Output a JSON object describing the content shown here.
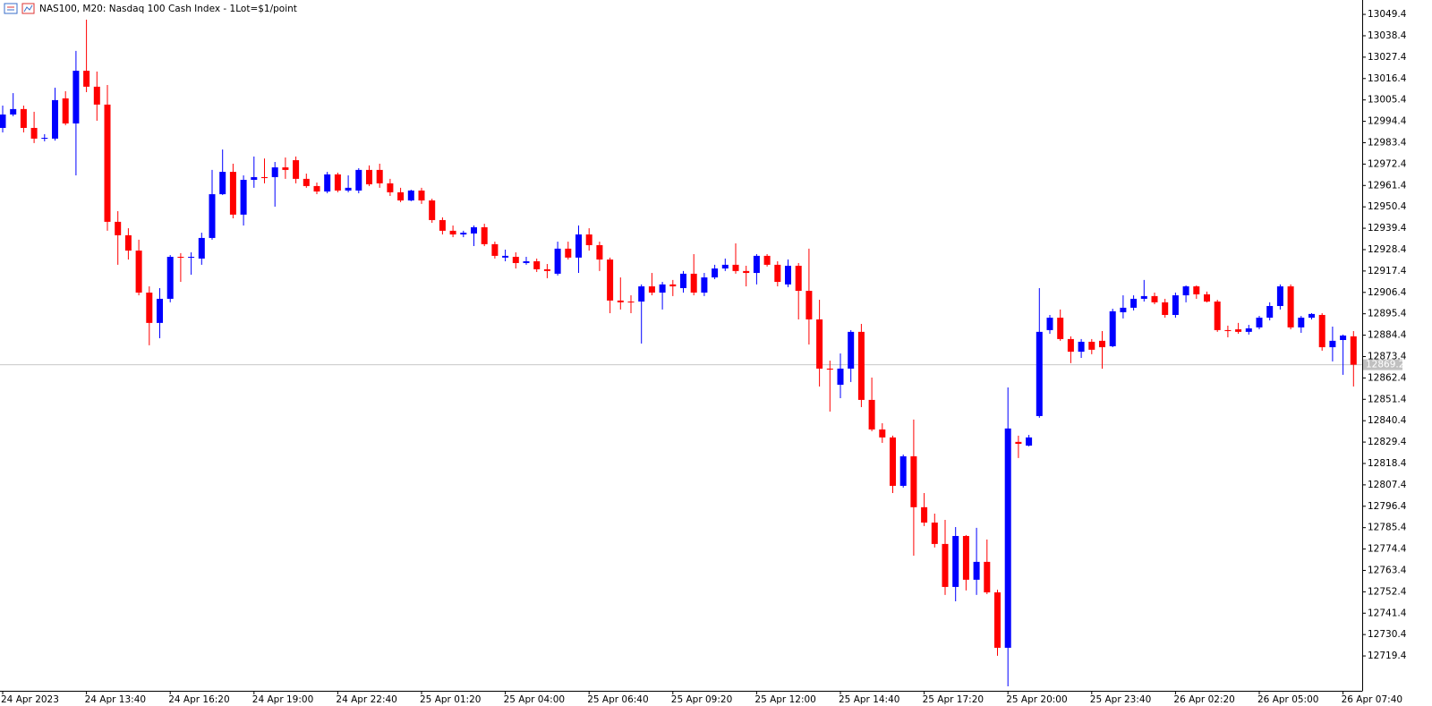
{
  "chart_data": {
    "type": "candlestick",
    "title": "NAS100, M20:  Nasdaq 100 Cash Index - 1Lot=$1/point",
    "up_color": "#0000ff",
    "down_color": "#ff0000",
    "current_price": 12869.2,
    "categories": [
      "24 Apr 2023",
      null,
      null,
      null,
      null,
      null,
      null,
      null,
      "24 Apr 13:40",
      null,
      null,
      null,
      null,
      null,
      null,
      null,
      "24 Apr 16:20",
      null,
      null,
      null,
      null,
      null,
      null,
      null,
      "24 Apr 19:00",
      null,
      null,
      null,
      null,
      null,
      null,
      null,
      "24 Apr 22:40",
      null,
      null,
      null,
      null,
      null,
      null,
      null,
      "25 Apr 01:20",
      null,
      null,
      null,
      null,
      null,
      null,
      null,
      "25 Apr 04:00",
      null,
      null,
      null,
      null,
      null,
      null,
      null,
      "25 Apr 06:40",
      null,
      null,
      null,
      null,
      null,
      null,
      null,
      "25 Apr 09:20",
      null,
      null,
      null,
      null,
      null,
      null,
      null,
      "25 Apr 12:00",
      null,
      null,
      null,
      null,
      null,
      null,
      null,
      "25 Apr 14:40",
      null,
      null,
      null,
      null,
      null,
      null,
      null,
      "25 Apr 17:20",
      null,
      null,
      null,
      null,
      null,
      null,
      null,
      "25 Apr 20:00",
      null,
      null,
      null,
      null,
      null,
      null,
      null,
      "25 Apr 23:40",
      null,
      null,
      null,
      null,
      null,
      null,
      null,
      "26 Apr 02:20",
      null,
      null,
      null,
      null,
      null,
      null,
      null,
      "26 Apr 05:00",
      null,
      null,
      null,
      null,
      null,
      null,
      null,
      "26 Apr 07:40",
      null
    ],
    "open": [
      12991.0,
      12997.9,
      13000.7,
      12991.0,
      12985.5,
      12985.5,
      13006.2,
      12993.3,
      13020.4,
      13012.2,
      13003.0,
      12942.7,
      12935.8,
      12927.9,
      12906.3,
      12890.7,
      12903.1,
      12924.7,
      12924.3,
      12923.8,
      12934.4,
      12956.9,
      12968.4,
      12946.4,
      12964.3,
      12965.7,
      12965.7,
      12970.7,
      12974.4,
      12964.8,
      12961.1,
      12958.3,
      12967.1,
      12958.8,
      12958.8,
      12969.4,
      12969.4,
      12962.5,
      12957.9,
      12953.7,
      12958.8,
      12953.7,
      12943.6,
      12938.1,
      12936.2,
      12936.7,
      12939.9,
      12931.2,
      12924.3,
      12924.7,
      12921.5,
      12922.4,
      12918.3,
      12916.0,
      12928.9,
      12924.3,
      12936.2,
      12930.7,
      12923.3,
      12902.2,
      12901.7,
      12901.7,
      12909.5,
      12906.3,
      12910.5,
      12908.6,
      12916.0,
      12906.3,
      12914.1,
      12918.7,
      12920.6,
      12917.4,
      12916.4,
      12925.2,
      12920.6,
      12910.5,
      12920.1,
      12907.2,
      12892.5,
      12867.2,
      12858.9,
      12867.2,
      12886.1,
      12851.1,
      12835.9,
      12831.8,
      12806.9,
      12822.1,
      12795.9,
      12788.0,
      12777.0,
      12754.9,
      12781.1,
      12758.6,
      12767.8,
      12752.1,
      12723.6,
      12829.5,
      12827.6,
      12842.8,
      12887.0,
      12893.4,
      12882.4,
      12875.9,
      12881.0,
      12881.5,
      12878.7,
      12896.2,
      12898.5,
      12903.1,
      12904.5,
      12901.3,
      12894.8,
      12904.9,
      12909.5,
      12905.4,
      12901.7,
      12887.0,
      12887.4,
      12886.1,
      12888.4,
      12893.4,
      12899.4,
      12909.5,
      12888.4,
      12893.4,
      12894.8,
      12878.2,
      12881.9,
      12883.8
    ],
    "high": [
      13002.5,
      13008.9,
      13002.5,
      12999.3,
      12987.8,
      13011.7,
      13009.9,
      13030.6,
      13046.7,
      13020.0,
      13013.1,
      12948.2,
      12939.4,
      12933.5,
      12909.5,
      12908.6,
      12925.6,
      12926.6,
      12927.0,
      12937.1,
      12969.4,
      12979.9,
      12972.6,
      12966.6,
      12976.3,
      12975.3,
      12973.5,
      12975.8,
      12976.3,
      12967.5,
      12962.9,
      12968.4,
      12968.0,
      12966.6,
      12970.3,
      12971.7,
      12972.6,
      12964.8,
      12960.2,
      12959.2,
      12960.2,
      12954.6,
      12945.0,
      12940.8,
      12938.1,
      12940.8,
      12941.7,
      12932.5,
      12928.4,
      12927.0,
      12924.7,
      12923.8,
      12921.0,
      12932.5,
      12932.5,
      12940.8,
      12939.4,
      12932.5,
      12924.3,
      12914.1,
      12904.9,
      12910.5,
      12916.4,
      12911.8,
      12912.8,
      12917.4,
      12926.1,
      12916.4,
      12920.6,
      12923.8,
      12931.6,
      12920.1,
      12926.1,
      12926.1,
      12922.4,
      12923.3,
      12921.5,
      12928.9,
      12902.6,
      12871.3,
      12875.0,
      12887.0,
      12890.2,
      12862.6,
      12839.1,
      12832.7,
      12823.0,
      12841.0,
      12803.2,
      12792.6,
      12789.4,
      12785.7,
      12781.6,
      12785.3,
      12779.3,
      12753.5,
      12857.5,
      12832.7,
      12833.1,
      12908.6,
      12894.8,
      12897.6,
      12883.8,
      12882.4,
      12882.4,
      12886.5,
      12898.0,
      12904.9,
      12904.9,
      12912.8,
      12906.3,
      12903.1,
      12906.3,
      12910.0,
      12910.0,
      12906.8,
      12902.6,
      12889.3,
      12890.7,
      12889.7,
      12894.3,
      12901.3,
      12910.5,
      12910.5,
      12894.3,
      12895.7,
      12895.7,
      12888.8,
      12884.7,
      12886.5
    ],
    "low": [
      12988.7,
      12997.0,
      12988.7,
      12983.2,
      12984.1,
      12984.5,
      12992.4,
      12966.6,
      13009.4,
      12994.7,
      12938.1,
      12920.6,
      12923.3,
      12904.9,
      12879.2,
      12882.8,
      12901.3,
      12911.8,
      12915.5,
      12920.6,
      12933.5,
      12956.5,
      12944.5,
      12940.8,
      12960.2,
      12962.5,
      12950.5,
      12964.8,
      12962.5,
      12960.2,
      12956.9,
      12957.4,
      12957.9,
      12957.9,
      12957.4,
      12961.1,
      12960.2,
      12956.0,
      12952.8,
      12953.3,
      12951.9,
      12942.2,
      12936.2,
      12934.8,
      12934.8,
      12930.2,
      12930.2,
      12923.8,
      12922.4,
      12918.7,
      12920.6,
      12916.9,
      12913.7,
      12915.1,
      12923.3,
      12916.4,
      12927.9,
      12917.4,
      12895.7,
      12897.6,
      12895.7,
      12880.1,
      12904.9,
      12897.6,
      12904.5,
      12906.3,
      12904.9,
      12904.5,
      12913.2,
      12917.4,
      12916.0,
      12909.5,
      12910.5,
      12919.7,
      12909.5,
      12909.1,
      12892.5,
      12879.6,
      12858.0,
      12845.1,
      12852.0,
      12860.3,
      12847.4,
      12835.0,
      12829.0,
      12803.2,
      12806.0,
      12771.0,
      12786.2,
      12775.2,
      12750.8,
      12747.5,
      12753.1,
      12750.8,
      12751.2,
      12719.5,
      12703.8,
      12821.2,
      12827.2,
      12841.9,
      12885.1,
      12881.5,
      12870.0,
      12872.7,
      12874.6,
      12867.2,
      12878.2,
      12893.0,
      12897.1,
      12901.7,
      12900.3,
      12893.4,
      12893.4,
      12901.3,
      12903.1,
      12901.3,
      12886.1,
      12883.3,
      12885.1,
      12884.7,
      12887.4,
      12892.0,
      12897.6,
      12887.4,
      12885.6,
      12892.5,
      12876.4,
      12870.9,
      12864.0,
      12858.0
    ],
    "close": [
      12997.9,
      13000.7,
      12991.0,
      12985.5,
      12985.9,
      13005.3,
      12993.3,
      13020.4,
      13012.2,
      13003.0,
      12942.7,
      12935.8,
      12927.9,
      12906.3,
      12890.7,
      12903.1,
      12924.7,
      12924.3,
      12924.7,
      12934.4,
      12956.9,
      12968.4,
      12946.4,
      12964.3,
      12965.7,
      12965.2,
      12970.7,
      12969.4,
      12964.8,
      12961.1,
      12958.3,
      12967.1,
      12958.8,
      12960.2,
      12969.4,
      12962.0,
      12962.5,
      12957.9,
      12953.7,
      12958.8,
      12953.7,
      12943.6,
      12938.1,
      12936.2,
      12937.1,
      12939.9,
      12931.2,
      12925.2,
      12925.2,
      12921.5,
      12922.4,
      12918.3,
      12917.4,
      12928.9,
      12924.3,
      12936.2,
      12930.7,
      12923.3,
      12902.2,
      12901.3,
      12901.3,
      12909.5,
      12906.3,
      12910.5,
      12909.5,
      12916.0,
      12906.3,
      12914.1,
      12918.7,
      12920.6,
      12917.4,
      12916.4,
      12925.2,
      12920.6,
      12911.8,
      12920.1,
      12907.2,
      12892.5,
      12867.2,
      12866.7,
      12867.2,
      12886.1,
      12851.1,
      12835.9,
      12831.8,
      12806.9,
      12822.1,
      12795.9,
      12788.0,
      12777.0,
      12754.9,
      12781.1,
      12758.6,
      12767.8,
      12752.1,
      12723.6,
      12836.4,
      12828.5,
      12831.8,
      12886.1,
      12893.4,
      12882.4,
      12875.9,
      12881.0,
      12876.9,
      12878.2,
      12896.7,
      12898.5,
      12903.1,
      12904.5,
      12901.3,
      12894.8,
      12904.9,
      12909.5,
      12905.4,
      12901.7,
      12887.0,
      12886.5,
      12886.1,
      12887.9,
      12893.4,
      12899.4,
      12909.5,
      12888.4,
      12893.4,
      12895.3,
      12878.2,
      12881.5,
      12884.2,
      12869.2
    ],
    "ylim": [
      12702.4,
      13056.8
    ],
    "yticks": [
      13049.4,
      13038.4,
      13027.4,
      13016.4,
      13005.4,
      12994.4,
      12983.4,
      12972.4,
      12961.4,
      12950.4,
      12939.4,
      12928.4,
      12917.4,
      12906.4,
      12895.4,
      12884.4,
      12873.4,
      12862.4,
      12851.4,
      12840.4,
      12829.4,
      12818.4,
      12807.4,
      12796.4,
      12785.4,
      12774.4,
      12763.4,
      12752.4,
      12741.4,
      12730.4,
      12719.4
    ],
    "grid": false
  }
}
